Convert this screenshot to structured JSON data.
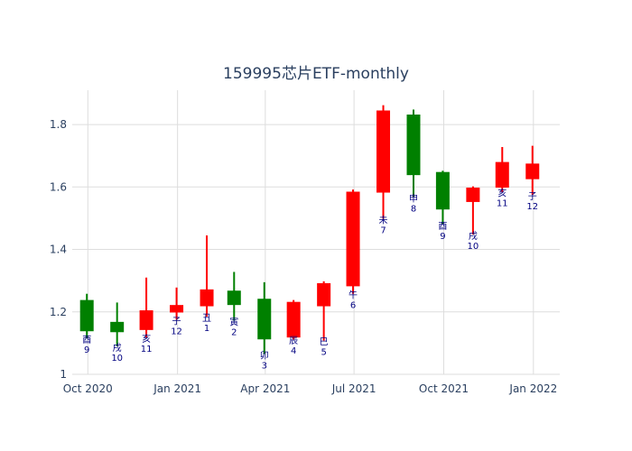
{
  "chart_data": {
    "type": "candlestick",
    "title": "159995芯片ETF-monthly",
    "xlabel": "",
    "ylabel": "",
    "ylim": [
      1.0,
      1.91
    ],
    "xlim": [
      "2020-09-15",
      "2022-01-28"
    ],
    "x_ticks": [
      {
        "date": "2020-10-01",
        "label": "Oct 2020"
      },
      {
        "date": "2021-01-01",
        "label": "Jan 2021"
      },
      {
        "date": "2021-04-01",
        "label": "Apr 2021"
      },
      {
        "date": "2021-07-01",
        "label": "Jul 2021"
      },
      {
        "date": "2021-10-01",
        "label": "Oct 2021"
      },
      {
        "date": "2022-01-01",
        "label": "Jan 2022"
      }
    ],
    "y_ticks": [
      1,
      1.2,
      1.4,
      1.6,
      1.8
    ],
    "y_tick_labels": [
      "1",
      "1.2",
      "1.4",
      "1.6",
      "1.8"
    ],
    "grid": true,
    "colors": {
      "increasing": "#ff0000",
      "decreasing": "#008000",
      "annotation": "#000080",
      "grid": "#dddddd",
      "text": "#2a3f5f"
    },
    "candles": [
      {
        "date": "2020-09-30",
        "open": 1.238,
        "high": 1.258,
        "low": 1.115,
        "close": 1.138,
        "branch": "酉",
        "month": "9"
      },
      {
        "date": "2020-10-31",
        "open": 1.168,
        "high": 1.23,
        "low": 1.09,
        "close": 1.135,
        "branch": "戌",
        "month": "10"
      },
      {
        "date": "2020-11-30",
        "open": 1.142,
        "high": 1.31,
        "low": 1.118,
        "close": 1.205,
        "branch": "亥",
        "month": "11"
      },
      {
        "date": "2020-12-31",
        "open": 1.198,
        "high": 1.278,
        "low": 1.175,
        "close": 1.222,
        "branch": "子",
        "month": "12"
      },
      {
        "date": "2021-01-31",
        "open": 1.218,
        "high": 1.445,
        "low": 1.185,
        "close": 1.272,
        "branch": "丑",
        "month": "1"
      },
      {
        "date": "2021-02-28",
        "open": 1.268,
        "high": 1.328,
        "low": 1.172,
        "close": 1.222,
        "branch": "寅",
        "month": "2"
      },
      {
        "date": "2021-03-31",
        "open": 1.242,
        "high": 1.295,
        "low": 1.065,
        "close": 1.112,
        "branch": "卯",
        "month": "3"
      },
      {
        "date": "2021-04-30",
        "open": 1.118,
        "high": 1.238,
        "low": 1.112,
        "close": 1.232,
        "branch": "辰",
        "month": "4"
      },
      {
        "date": "2021-05-31",
        "open": 1.218,
        "high": 1.298,
        "low": 1.108,
        "close": 1.292,
        "branch": "巳",
        "month": "5"
      },
      {
        "date": "2021-06-30",
        "open": 1.282,
        "high": 1.592,
        "low": 1.258,
        "close": 1.585,
        "branch": "午",
        "month": "6"
      },
      {
        "date": "2021-07-31",
        "open": 1.582,
        "high": 1.862,
        "low": 1.498,
        "close": 1.845,
        "branch": "未",
        "month": "7"
      },
      {
        "date": "2021-08-31",
        "open": 1.832,
        "high": 1.848,
        "low": 1.568,
        "close": 1.638,
        "branch": "申",
        "month": "8"
      },
      {
        "date": "2021-09-30",
        "open": 1.648,
        "high": 1.652,
        "low": 1.48,
        "close": 1.528,
        "branch": "酉",
        "month": "9"
      },
      {
        "date": "2021-10-31",
        "open": 1.552,
        "high": 1.602,
        "low": 1.448,
        "close": 1.598,
        "branch": "戌",
        "month": "10"
      },
      {
        "date": "2021-11-30",
        "open": 1.598,
        "high": 1.728,
        "low": 1.585,
        "close": 1.68,
        "branch": "亥",
        "month": "11"
      },
      {
        "date": "2021-12-31",
        "open": 1.625,
        "high": 1.732,
        "low": 1.575,
        "close": 1.675,
        "branch": "子",
        "month": "12"
      }
    ]
  }
}
